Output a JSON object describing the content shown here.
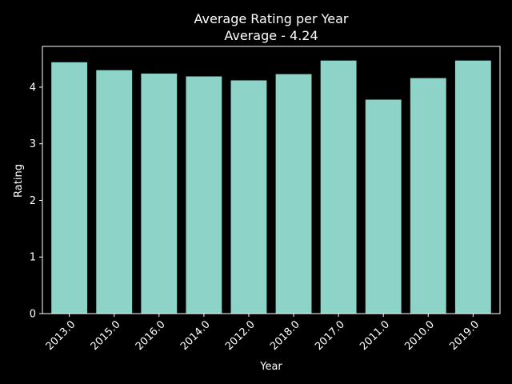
{
  "chart_data": {
    "type": "bar",
    "title": "Average Rating per Year",
    "subtitle": "Average - 4.24",
    "xlabel": "Year",
    "ylabel": "Rating",
    "categories": [
      "2013.0",
      "2015.0",
      "2016.0",
      "2014.0",
      "2012.0",
      "2018.0",
      "2017.0",
      "2011.0",
      "2010.0",
      "2019.0"
    ],
    "values": [
      4.44,
      4.3,
      4.24,
      4.19,
      4.12,
      4.23,
      4.47,
      3.78,
      4.16,
      4.47
    ],
    "ylim": [
      0,
      4.72
    ],
    "yticks": [
      "0",
      "1",
      "2",
      "3",
      "4"
    ],
    "grid": false,
    "colors": {
      "bar": "#8dd3c7",
      "background": "#000000",
      "axes": "#ffffff",
      "text": "#ffffff"
    }
  }
}
